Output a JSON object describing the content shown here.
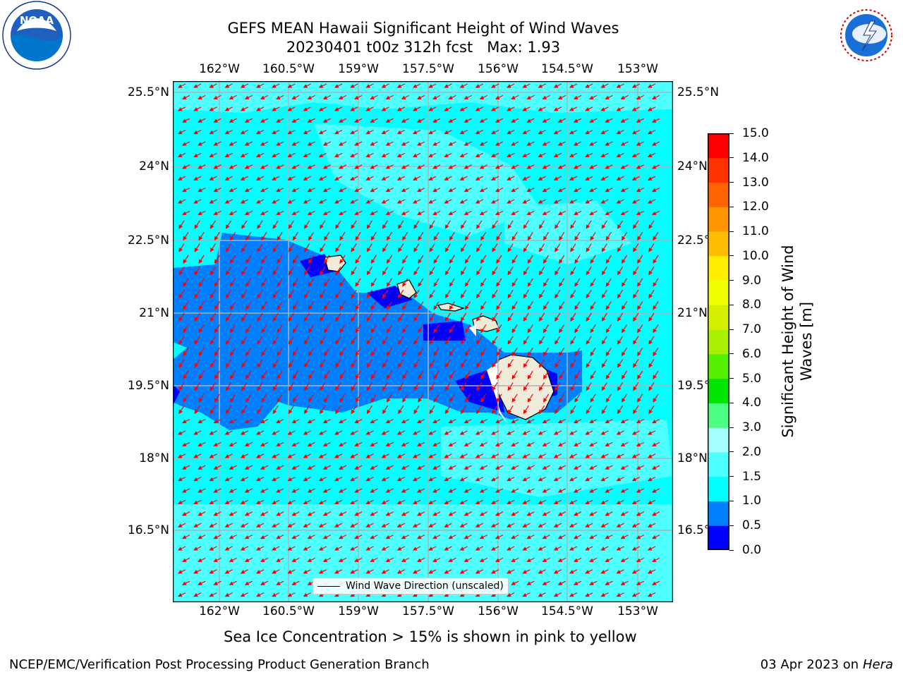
{
  "header": {
    "title_line1": "GEFS MEAN Hawaii Significant Height of Wind Waves",
    "title_line2": "20230401 t00z 312h fcst   Max: 1.93"
  },
  "logos": {
    "left_name": "NOAA",
    "left_ring_text": "NATIONAL OCEANIC AND ATMOSPHERIC ADMINISTRATION · U.S. DEPARTMENT OF COMMERCE",
    "right_ring_text": "NATIONAL WEATHER SERVICE"
  },
  "map": {
    "lon_labels": [
      "162°W",
      "160.5°W",
      "159°W",
      "157.5°W",
      "156°W",
      "154.5°W",
      "153°W"
    ],
    "lat_labels": [
      "25.5°N",
      "24°N",
      "22.5°N",
      "21°N",
      "19.5°N",
      "18°N",
      "16.5°N"
    ],
    "legend_text": "Wind Wave Direction (unscaled)",
    "colors": {
      "ocean_low": "#00ffff",
      "ocean_mid": "#4dffff",
      "band_1": "#007fff",
      "band_0": "#0000ff",
      "land": "#efebd8",
      "arrow": "#ff0000",
      "grid": "#b0b0b0"
    }
  },
  "colorbar": {
    "label_line1": "Significant Height of Wind",
    "label_line2": "Waves [m]",
    "ticks": [
      "0.0",
      "0.5",
      "1.0",
      "1.5",
      "2.0",
      "3.0",
      "4.0",
      "5.0",
      "6.0",
      "7.0",
      "8.0",
      "9.0",
      "10.0",
      "11.0",
      "12.0",
      "13.0",
      "14.0",
      "15.0"
    ],
    "colors": [
      "#0000ff",
      "#007fff",
      "#00ffff",
      "#4dffff",
      "#a6ffff",
      "#4dff80",
      "#00e600",
      "#55ee00",
      "#aaee00",
      "#d4f000",
      "#eeff00",
      "#ffee00",
      "#ffbf00",
      "#ff9600",
      "#ff6400",
      "#ff3200",
      "#ff0000"
    ]
  },
  "notes": {
    "sea_ice": "Sea Ice Concentration > 15% is shown in pink to yellow"
  },
  "footer": {
    "left": "NCEP/EMC/Verification Post Processing Product Generation Branch",
    "date": "03 Apr 2023 on ",
    "host": "Hera"
  }
}
